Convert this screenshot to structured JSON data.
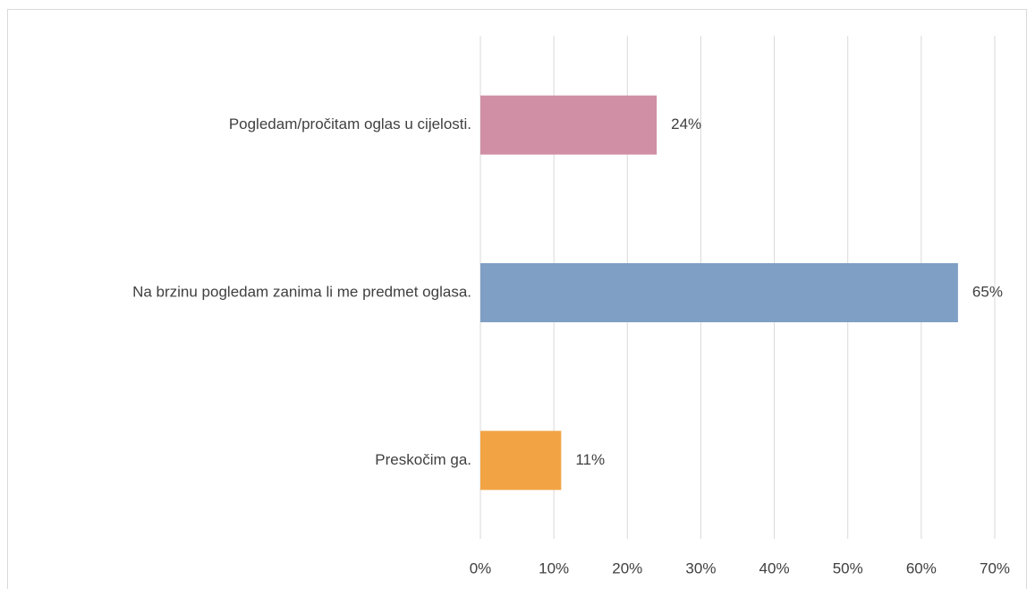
{
  "chart_data": {
    "type": "bar",
    "orientation": "horizontal",
    "categories": [
      "Pogledam/pročitam oglas u cijelosti.",
      "Na brzinu pogledam zanima li me predmet oglasa.",
      "Preskočim ga."
    ],
    "values": [
      24,
      65,
      11
    ],
    "value_labels": [
      "24%",
      "65%",
      "11%"
    ],
    "colors": [
      "#d08fa4",
      "#7f9fc4",
      "#f2a444"
    ],
    "xlim": [
      0,
      70
    ],
    "xticks": [
      {
        "value": 0,
        "label": "0%"
      },
      {
        "value": 10,
        "label": "10%"
      },
      {
        "value": 20,
        "label": "20%"
      },
      {
        "value": 30,
        "label": "30%"
      },
      {
        "value": 40,
        "label": "40%"
      },
      {
        "value": 50,
        "label": "50%"
      },
      {
        "value": 60,
        "label": "60%"
      },
      {
        "value": 70,
        "label": "70%"
      }
    ],
    "grid": true
  }
}
